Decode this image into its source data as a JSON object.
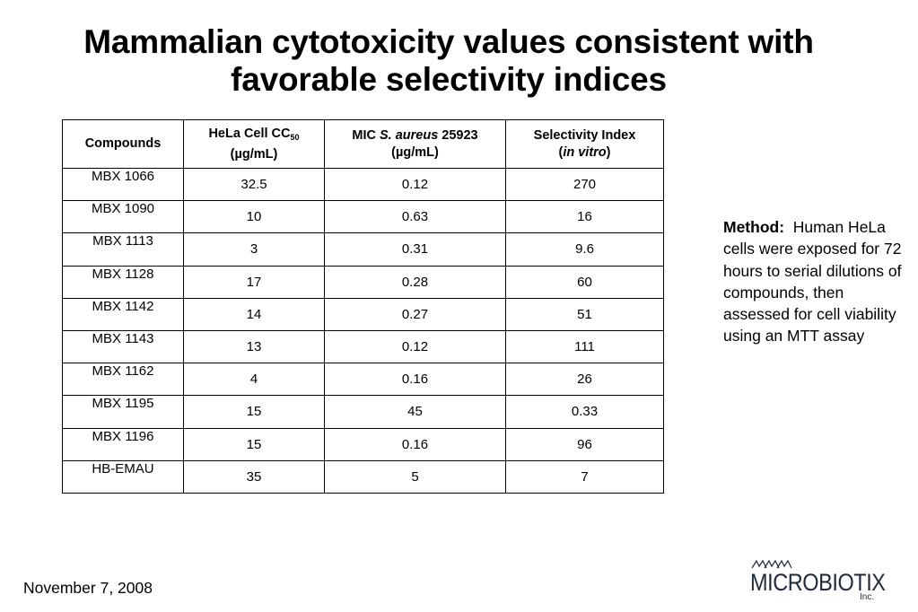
{
  "title_line1": "Mammalian cytotoxicity values consistent with",
  "title_line2": "favorable selectivity indices",
  "table": {
    "headers": {
      "compounds": "Compounds",
      "hela_a": "HeLa Cell CC",
      "hela_sub": "50",
      "hela_b": "(µg/mL)",
      "mic_a": "MIC ",
      "mic_italic": "S. aureus",
      "mic_b": " 25923",
      "mic_c": "(µg/mL)",
      "si_a": "Selectivity Index",
      "si_open": "(",
      "si_italic": "in vitro",
      "si_close": ")"
    },
    "rows": [
      {
        "compound": "MBX 1066",
        "hela": "32.5",
        "mic": "0.12",
        "si": "270"
      },
      {
        "compound": "MBX 1090",
        "hela": "10",
        "mic": "0.63",
        "si": "16"
      },
      {
        "compound": "MBX 1113",
        "hela": "3",
        "mic": "0.31",
        "si": "9.6"
      },
      {
        "compound": "MBX 1128",
        "hela": "17",
        "mic": "0.28",
        "si": "60"
      },
      {
        "compound": "MBX 1142",
        "hela": "14",
        "mic": "0.27",
        "si": "51"
      },
      {
        "compound": "MBX 1143",
        "hela": "13",
        "mic": "0.12",
        "si": "111"
      },
      {
        "compound": "MBX 1162",
        "hela": "4",
        "mic": "0.16",
        "si": "26"
      },
      {
        "compound": "MBX 1195",
        "hela": "15",
        "mic": "45",
        "si": "0.33"
      },
      {
        "compound": "MBX 1196",
        "hela": "15",
        "mic": "0.16",
        "si": "96"
      },
      {
        "compound": "HB-EMAU",
        "hela": "35",
        "mic": "5",
        "si": "7"
      }
    ]
  },
  "method": {
    "label": "Method:",
    "text": "Human HeLa cells were exposed for 72 hours to serial dilutions of compounds, then assessed for cell viability using an MTT assay"
  },
  "date": "November 7, 2008",
  "logo": {
    "name": "MICROBIOTIX",
    "suffix": "Inc.",
    "color": "#1f2a3a"
  }
}
